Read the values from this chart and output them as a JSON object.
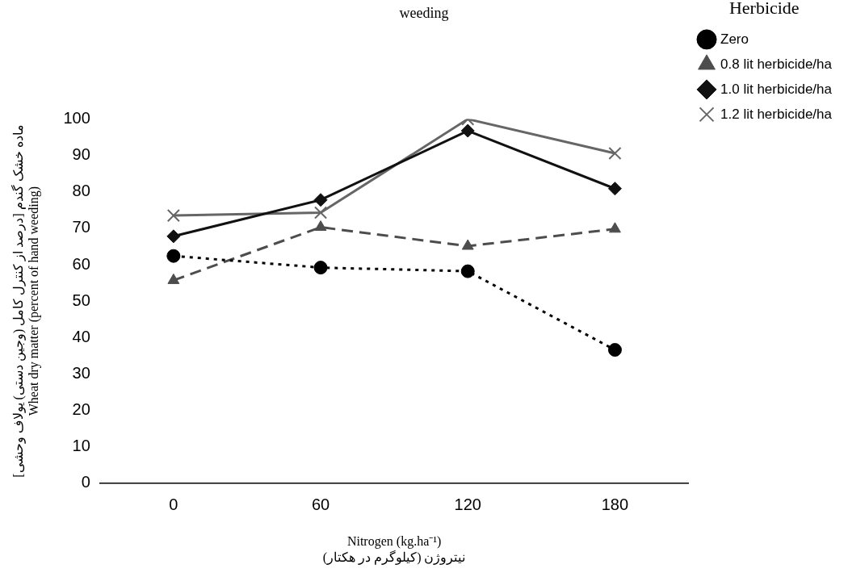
{
  "chart_data": {
    "type": "line",
    "title": "weeding",
    "xlabel": "Nitrogen (kg.ha⁻¹)\nنیتروژن (کیلوگرم در هکتار)",
    "ylabel": "ماده خشک گندم [درصد از کنترل کامل (وجین دستی) یولاف وحشی]\nWheat dry matter (percent of hand weeding)",
    "legend_title": "Herbicide",
    "legend": "top right",
    "grid": false,
    "categories": [
      "0",
      "60",
      "120",
      "180"
    ],
    "ylim": [
      0,
      100
    ],
    "yticks": [
      0,
      10,
      20,
      30,
      40,
      50,
      60,
      70,
      80,
      90,
      100
    ],
    "series": [
      {
        "name": "Zero",
        "color": "#000000",
        "marker": "circle",
        "line_style": "dotted",
        "values": [
          62.4,
          59.2,
          58.2,
          36.6
        ]
      },
      {
        "name": "0.8 lit herbicide/ha",
        "color": "#4d4d4d",
        "marker": "triangle",
        "line_style": "dashed",
        "values": [
          55.7,
          70.3,
          65.1,
          69.8
        ]
      },
      {
        "name": "1.0 lit herbicide/ha",
        "color": "#111111",
        "marker": "diamond",
        "line_style": "solid",
        "values": [
          67.8,
          77.8,
          96.8,
          80.9
        ]
      },
      {
        "name": "1.2 lit herbicide/ha",
        "color": "#666666",
        "marker": "cross",
        "line_style": "solid",
        "values": [
          73.5,
          74.3,
          100,
          90.6
        ]
      }
    ]
  }
}
